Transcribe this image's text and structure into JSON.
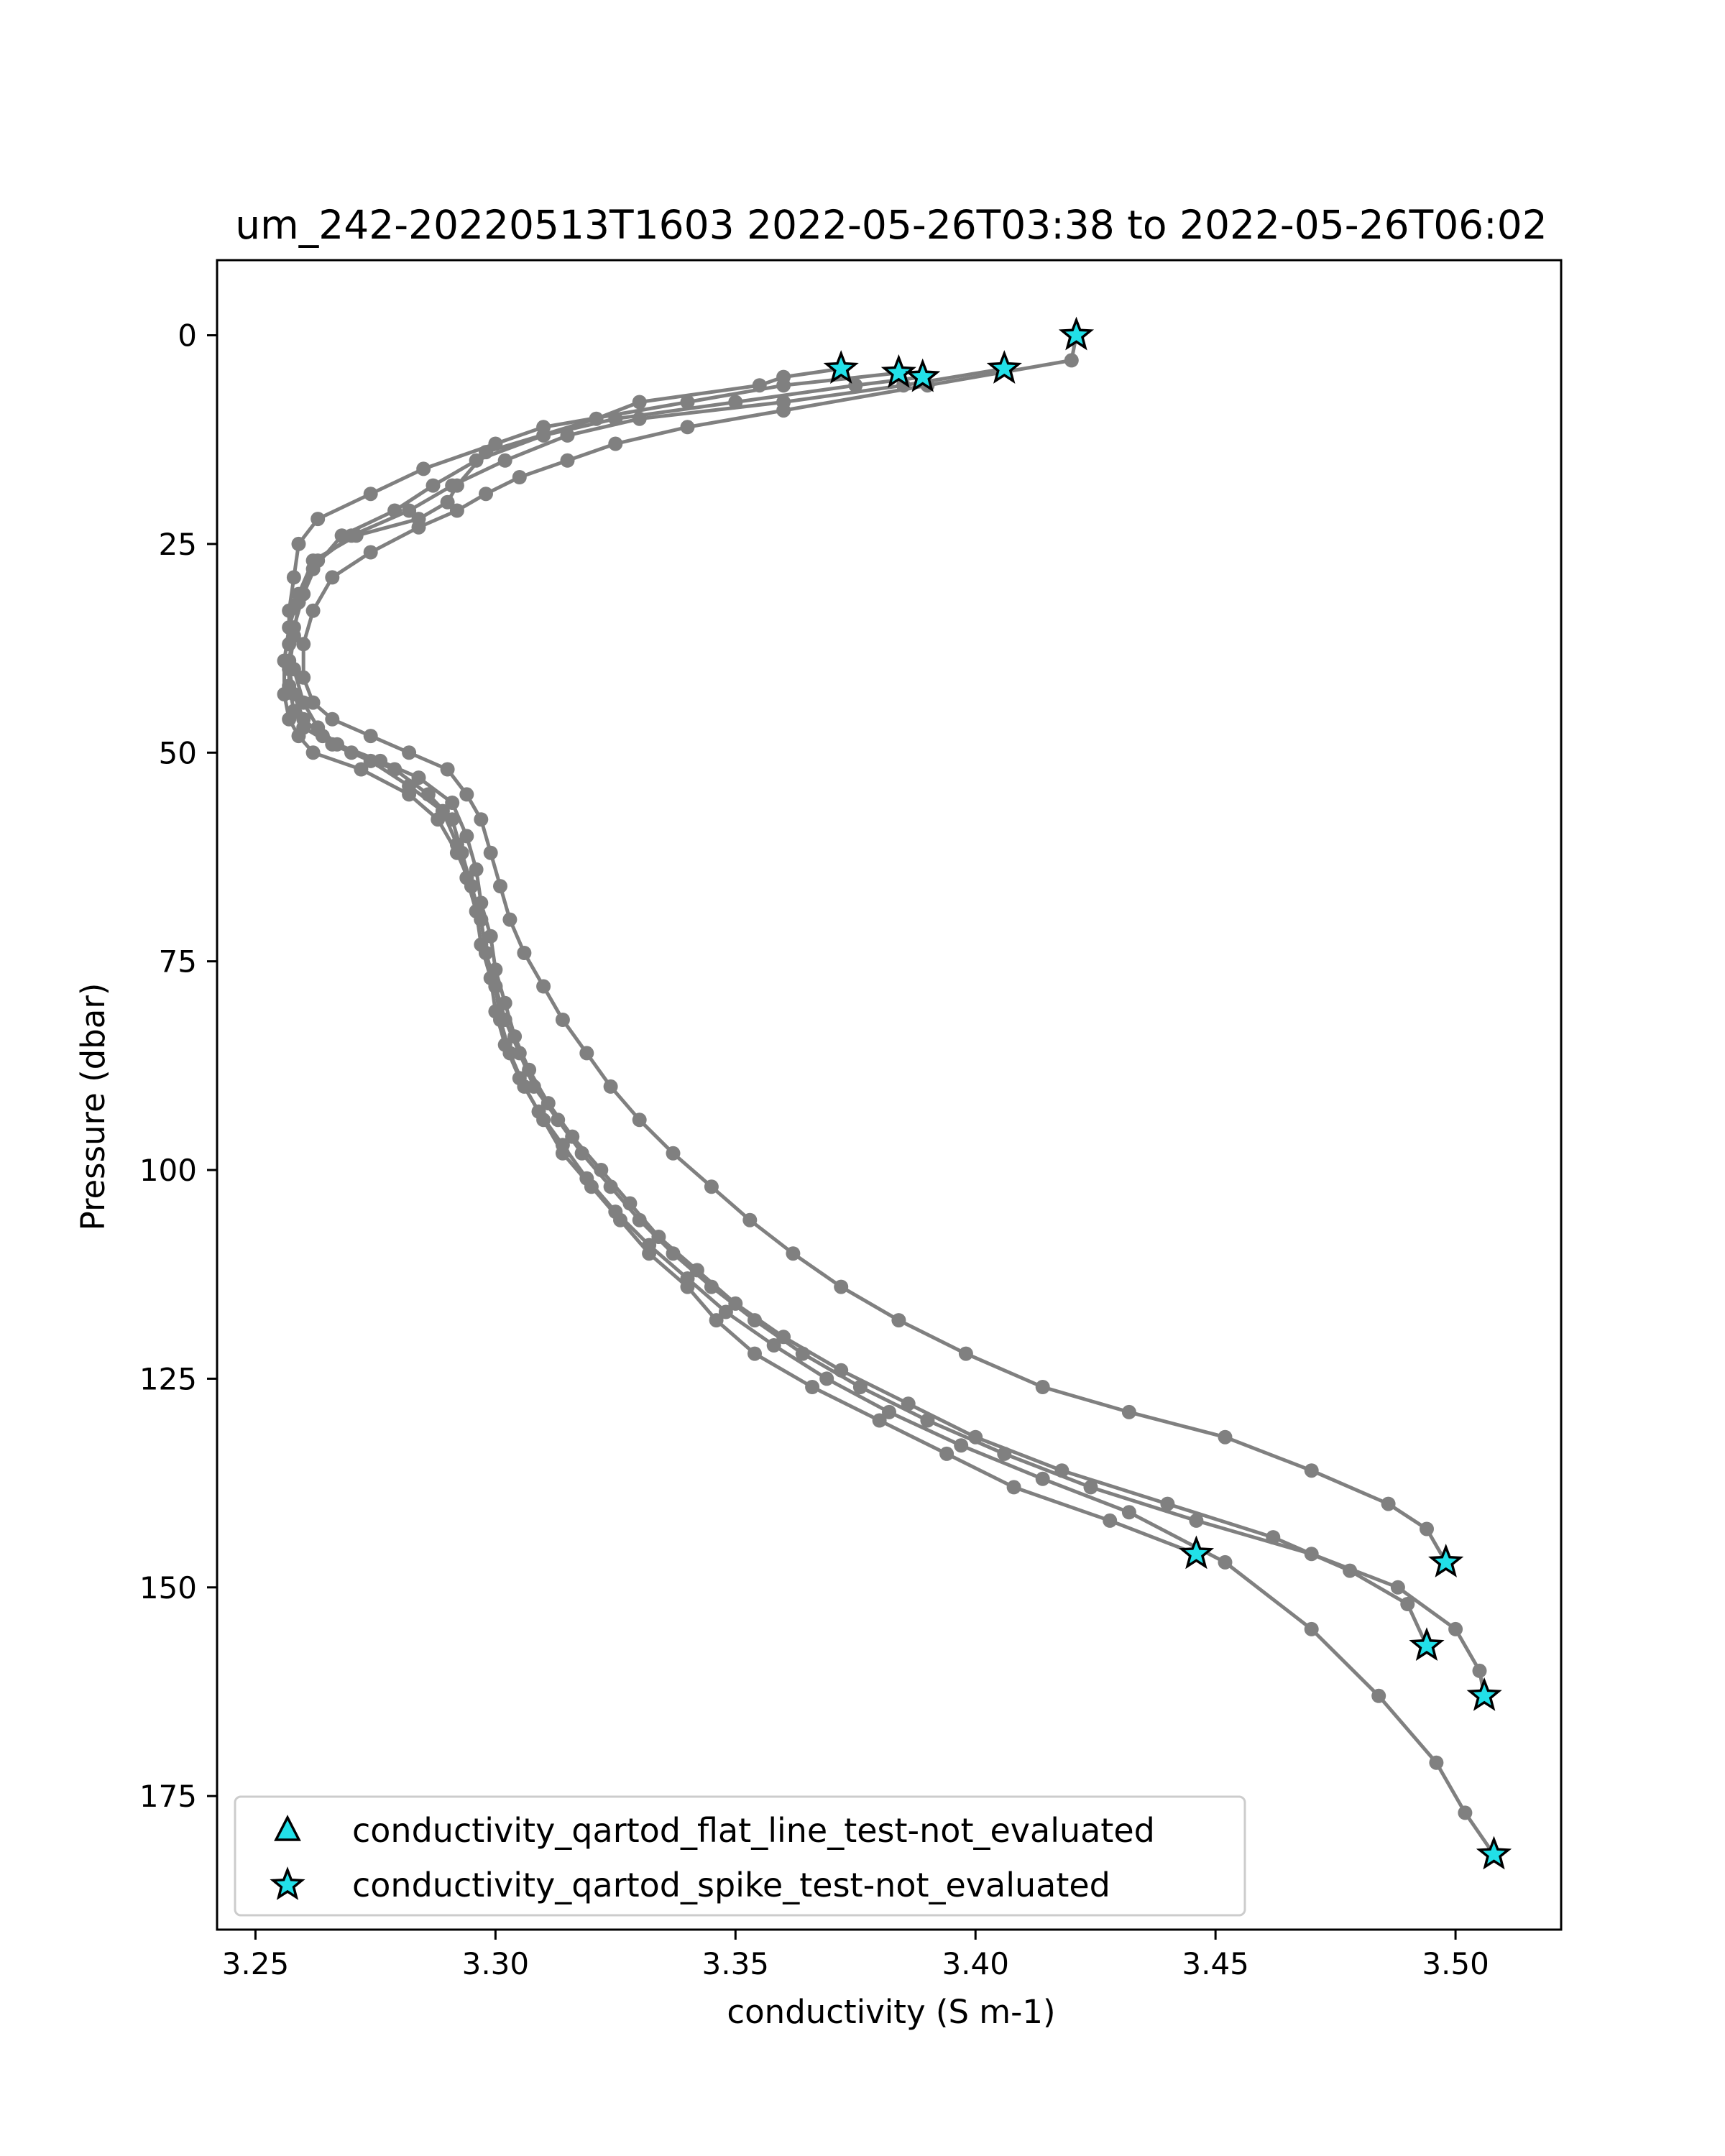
{
  "chart_data": {
    "type": "line",
    "title": "um_242-20220513T1603 2022-05-26T03:38 to 2022-05-26T06:02",
    "xlabel": "conductivity (S m-1)",
    "ylabel": "Pressure (dbar)",
    "xlim": [
      3.242,
      3.522
    ],
    "ylim": [
      191,
      -9
    ],
    "y_inverted": true,
    "grid": false,
    "line_color": "#808080",
    "marker_color": "#808080",
    "flag_color": "#22e0e8",
    "xticks": [
      3.25,
      3.3,
      3.35,
      3.4,
      3.45,
      3.5
    ],
    "xtick_labels": [
      "3.25",
      "3.30",
      "3.35",
      "3.40",
      "3.45",
      "3.50"
    ],
    "yticks": [
      0,
      25,
      50,
      75,
      100,
      125,
      150,
      175
    ],
    "ytick_labels": [
      "0",
      "25",
      "50",
      "75",
      "100",
      "125",
      "150",
      "175"
    ],
    "legend": {
      "placement": "lower-left",
      "entries": [
        {
          "label": "conductivity_qartod_flat_line_test-not_evaluated",
          "marker": "triangle",
          "color": "#22e0e8"
        },
        {
          "label": "conductivity_qartod_spike_test-not_evaluated",
          "marker": "star",
          "color": "#22e0e8"
        }
      ]
    },
    "series": [
      {
        "x": [
          3.372,
          3.36,
          3.355,
          3.33,
          3.321,
          3.298,
          3.292,
          3.29,
          3.284,
          3.271,
          3.262,
          3.259,
          3.257,
          3.256,
          3.256,
          3.257,
          3.259,
          3.262,
          3.272,
          3.282,
          3.288,
          3.292,
          3.295,
          3.297,
          3.298,
          3.3,
          3.301,
          3.303,
          3.306,
          3.31,
          3.314,
          3.32,
          3.326,
          3.332,
          3.34,
          3.346,
          3.354,
          3.366,
          3.38,
          3.394,
          3.408,
          3.428,
          3.446
        ],
        "y": [
          4,
          5,
          6,
          8,
          10,
          14,
          18,
          20,
          22,
          24,
          27,
          31,
          35,
          39,
          43,
          46,
          48,
          50,
          52,
          55,
          58,
          62,
          66,
          70,
          74,
          78,
          82,
          86,
          90,
          94,
          98,
          102,
          106,
          110,
          114,
          118,
          122,
          126,
          130,
          134,
          138,
          142,
          146
        ]
      },
      {
        "x": [
          3.384,
          3.36,
          3.34,
          3.31,
          3.3,
          3.285,
          3.274,
          3.263,
          3.259,
          3.258,
          3.257,
          3.257,
          3.258,
          3.26,
          3.263,
          3.267,
          3.276,
          3.284,
          3.291,
          3.294,
          3.296,
          3.297,
          3.299,
          3.3,
          3.302,
          3.304,
          3.307,
          3.311,
          3.316,
          3.322,
          3.328,
          3.334,
          3.342,
          3.35,
          3.36,
          3.372,
          3.386,
          3.4,
          3.418,
          3.44,
          3.462,
          3.478,
          3.49,
          3.494
        ],
        "y": [
          4.5,
          6,
          8,
          11,
          13,
          16,
          19,
          22,
          25,
          29,
          33,
          37,
          40,
          44,
          47,
          49,
          51,
          53,
          56,
          60,
          64,
          68,
          72,
          76,
          80,
          84,
          88,
          92,
          96,
          100,
          104,
          108,
          112,
          116,
          120,
          124,
          128,
          132,
          136,
          140,
          144,
          148,
          152,
          157
        ]
      },
      {
        "x": [
          3.389,
          3.375,
          3.35,
          3.325,
          3.31,
          3.296,
          3.287,
          3.279,
          3.268,
          3.262,
          3.259,
          3.258,
          3.257,
          3.258,
          3.26,
          3.264,
          3.27,
          3.279,
          3.286,
          3.291,
          3.293,
          3.295,
          3.297,
          3.298,
          3.3,
          3.302,
          3.305,
          3.308,
          3.313,
          3.318,
          3.324,
          3.33,
          3.337,
          3.345,
          3.354,
          3.364,
          3.376,
          3.39,
          3.406,
          3.424,
          3.446,
          3.47,
          3.488,
          3.5,
          3.505,
          3.506
        ],
        "y": [
          5,
          6,
          8,
          10,
          12,
          15,
          18,
          21,
          24,
          28,
          32,
          36,
          40,
          43,
          46,
          48,
          50,
          52,
          55,
          58,
          62,
          66,
          70,
          74,
          78,
          82,
          86,
          90,
          94,
          98,
          102,
          106,
          110,
          114,
          118,
          122,
          126,
          130,
          134,
          138,
          142,
          146,
          150,
          155,
          160,
          163
        ]
      },
      {
        "x": [
          3.406,
          3.385,
          3.36,
          3.33,
          3.315,
          3.302,
          3.291,
          3.282,
          3.27,
          3.263,
          3.26,
          3.258,
          3.257,
          3.257,
          3.258,
          3.26,
          3.266,
          3.274,
          3.282,
          3.289,
          3.292,
          3.294,
          3.296,
          3.297,
          3.299,
          3.3,
          3.302,
          3.305,
          3.309,
          3.314,
          3.319,
          3.325,
          3.332,
          3.34,
          3.348,
          3.358,
          3.369,
          3.382,
          3.397,
          3.414,
          3.432,
          3.452,
          3.47,
          3.484,
          3.496,
          3.502,
          3.508
        ],
        "y": [
          4,
          6,
          8,
          10,
          12,
          15,
          18,
          21,
          24,
          27,
          31,
          35,
          39,
          42,
          45,
          47,
          49,
          51,
          54,
          57,
          61,
          65,
          69,
          73,
          77,
          81,
          85,
          89,
          93,
          97,
          101,
          105,
          109,
          113,
          117,
          121,
          125,
          129,
          133,
          137,
          141,
          147,
          155,
          163,
          171,
          177,
          182
        ]
      },
      {
        "x": [
          3.421,
          3.42,
          3.39,
          3.36,
          3.34,
          3.325,
          3.315,
          3.305,
          3.298,
          3.292,
          3.284,
          3.274,
          3.266,
          3.262,
          3.26,
          3.26,
          3.262,
          3.266,
          3.274,
          3.282,
          3.29,
          3.294,
          3.297,
          3.299,
          3.301,
          3.303,
          3.306,
          3.31,
          3.314,
          3.319,
          3.324,
          3.33,
          3.337,
          3.345,
          3.353,
          3.362,
          3.372,
          3.384,
          3.398,
          3.414,
          3.432,
          3.452,
          3.47,
          3.486,
          3.494,
          3.498
        ],
        "y": [
          0,
          3,
          6,
          9,
          11,
          13,
          15,
          17,
          19,
          21,
          23,
          26,
          29,
          33,
          37,
          41,
          44,
          46,
          48,
          50,
          52,
          55,
          58,
          62,
          66,
          70,
          74,
          78,
          82,
          86,
          90,
          94,
          98,
          102,
          106,
          110,
          114,
          118,
          122,
          126,
          129,
          132,
          136,
          140,
          143,
          147
        ]
      }
    ],
    "flagged_points": [
      {
        "test": "conductivity_qartod_spike_test-not_evaluated",
        "points": [
          [
            3.372,
            4
          ],
          [
            3.384,
            4.5
          ],
          [
            3.389,
            5
          ],
          [
            3.406,
            4
          ],
          [
            3.421,
            0
          ],
          [
            3.446,
            146
          ],
          [
            3.498,
            147
          ],
          [
            3.494,
            157
          ],
          [
            3.506,
            163
          ],
          [
            3.508,
            182
          ]
        ]
      }
    ]
  }
}
